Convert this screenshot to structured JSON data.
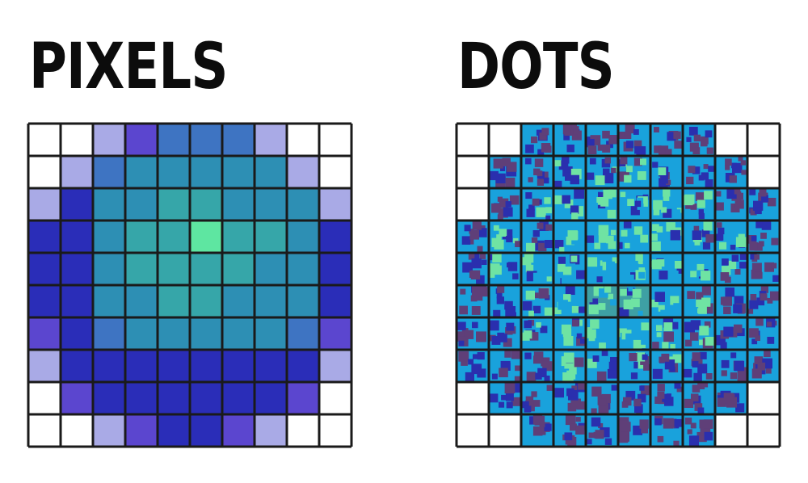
{
  "panels": {
    "pixels": {
      "title": "PIXELS"
    },
    "dots": {
      "title": "DOTS"
    }
  },
  "colors": {
    "empty_cell": "#ffffff",
    "grid_line": "#1a1a1a",
    "pixel_palette": [
      "#ffffff",
      "#a9aae6",
      "#5b46cf",
      "#2a2db8",
      "#3e74c2",
      "#2d8fb4",
      "#36a6a9",
      "#5ee6a1"
    ],
    "dot_backgrounds": [
      "#ffffff",
      "#19a2dc",
      "#3ea0a4"
    ],
    "dot_colors": [
      "#5f3f78",
      "#2a2fae",
      "#6fe3a3",
      "#19a2dc"
    ]
  },
  "pixel_grid": [
    [
      0,
      0,
      1,
      2,
      4,
      4,
      4,
      1,
      0,
      0
    ],
    [
      0,
      1,
      4,
      5,
      5,
      5,
      5,
      5,
      1,
      0
    ],
    [
      1,
      3,
      5,
      5,
      6,
      6,
      5,
      5,
      5,
      1
    ],
    [
      3,
      3,
      5,
      6,
      6,
      7,
      6,
      6,
      5,
      3
    ],
    [
      3,
      3,
      5,
      6,
      6,
      6,
      6,
      5,
      5,
      3
    ],
    [
      3,
      3,
      5,
      5,
      6,
      6,
      5,
      5,
      5,
      3
    ],
    [
      2,
      3,
      4,
      5,
      5,
      5,
      5,
      5,
      4,
      2
    ],
    [
      1,
      3,
      3,
      3,
      3,
      3,
      3,
      3,
      3,
      1
    ],
    [
      0,
      2,
      3,
      3,
      3,
      3,
      3,
      3,
      2,
      0
    ],
    [
      0,
      0,
      1,
      2,
      3,
      3,
      2,
      1,
      0,
      0
    ]
  ],
  "dot_grid": [
    [
      0,
      0,
      1,
      1,
      1,
      1,
      1,
      1,
      0,
      0
    ],
    [
      0,
      1,
      1,
      1,
      1,
      1,
      1,
      1,
      1,
      0
    ],
    [
      0,
      1,
      1,
      1,
      1,
      1,
      1,
      1,
      1,
      1
    ],
    [
      1,
      1,
      1,
      1,
      1,
      1,
      1,
      1,
      1,
      1
    ],
    [
      1,
      1,
      1,
      1,
      1,
      1,
      1,
      1,
      1,
      1
    ],
    [
      1,
      1,
      1,
      1,
      2,
      2,
      1,
      1,
      1,
      1
    ],
    [
      1,
      1,
      1,
      1,
      1,
      1,
      1,
      1,
      1,
      1
    ],
    [
      1,
      1,
      1,
      1,
      1,
      1,
      1,
      1,
      1,
      1
    ],
    [
      0,
      1,
      1,
      1,
      1,
      1,
      1,
      1,
      1,
      0
    ],
    [
      0,
      0,
      1,
      1,
      1,
      1,
      1,
      1,
      0,
      0
    ]
  ]
}
